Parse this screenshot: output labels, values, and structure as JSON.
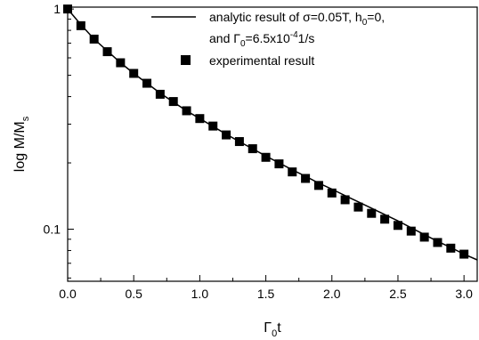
{
  "chart_data": {
    "type": "scatter",
    "title": "",
    "xlabel": {
      "main": "Γ",
      "sub": "0",
      "tail": "t"
    },
    "ylabel": {
      "main": "log M/M",
      "sub": "s"
    },
    "xlim": [
      0,
      3.1
    ],
    "ylim": [
      0.058,
      1.02
    ],
    "yscale": "log",
    "x_ticks": [
      0.0,
      0.5,
      1.0,
      1.5,
      2.0,
      2.5,
      3.0
    ],
    "x_tick_labels": [
      "0.0",
      "0.5",
      "1.0",
      "1.5",
      "2.0",
      "2.5",
      "3.0"
    ],
    "y_ticks": [
      0.1,
      1
    ],
    "y_tick_labels": [
      "0.1",
      "1"
    ],
    "grid": false,
    "legend_position": "top-right",
    "legend": [
      {
        "symbol": "line",
        "line1": [
          "analytic result of ",
          "σ",
          "=0.05T, h",
          "0",
          "=0,"
        ],
        "line2": [
          "and Γ",
          "0",
          "=6.5x10",
          "-4",
          "1/s"
        ]
      },
      {
        "symbol": "square",
        "label": "experimental result"
      }
    ],
    "series": [
      {
        "kind": "line",
        "color": "#000000",
        "x": [
          0.0,
          0.1,
          0.2,
          0.3,
          0.4,
          0.5,
          0.6,
          0.7,
          0.8,
          0.9,
          1.0,
          1.1,
          1.2,
          1.3,
          1.4,
          1.5,
          1.6,
          1.7,
          1.8,
          1.9,
          2.0,
          2.1,
          2.2,
          2.3,
          2.4,
          2.5,
          2.6,
          2.7,
          2.8,
          2.9,
          3.0,
          3.1
        ],
        "y": [
          1.0,
          0.85,
          0.73,
          0.645,
          0.57,
          0.51,
          0.46,
          0.415,
          0.378,
          0.345,
          0.318,
          0.293,
          0.27,
          0.25,
          0.232,
          0.215,
          0.2,
          0.186,
          0.174,
          0.162,
          0.152,
          0.142,
          0.133,
          0.1245,
          0.1165,
          0.109,
          0.1015,
          0.0945,
          0.088,
          0.0825,
          0.077,
          0.0725
        ]
      },
      {
        "kind": "markers",
        "color": "#000000",
        "x": [
          0.0,
          0.1,
          0.2,
          0.3,
          0.4,
          0.5,
          0.6,
          0.7,
          0.8,
          0.9,
          1.0,
          1.1,
          1.2,
          1.3,
          1.4,
          1.5,
          1.6,
          1.7,
          1.8,
          1.9,
          2.0,
          2.1,
          2.2,
          2.3,
          2.4,
          2.5,
          2.6,
          2.7,
          2.8,
          2.9,
          3.0
        ],
        "y": [
          1.0,
          0.84,
          0.73,
          0.64,
          0.57,
          0.51,
          0.46,
          0.41,
          0.38,
          0.345,
          0.318,
          0.294,
          0.268,
          0.25,
          0.232,
          0.212,
          0.198,
          0.182,
          0.17,
          0.158,
          0.146,
          0.136,
          0.126,
          0.118,
          0.111,
          0.104,
          0.098,
          0.092,
          0.087,
          0.082,
          0.077
        ]
      }
    ]
  }
}
